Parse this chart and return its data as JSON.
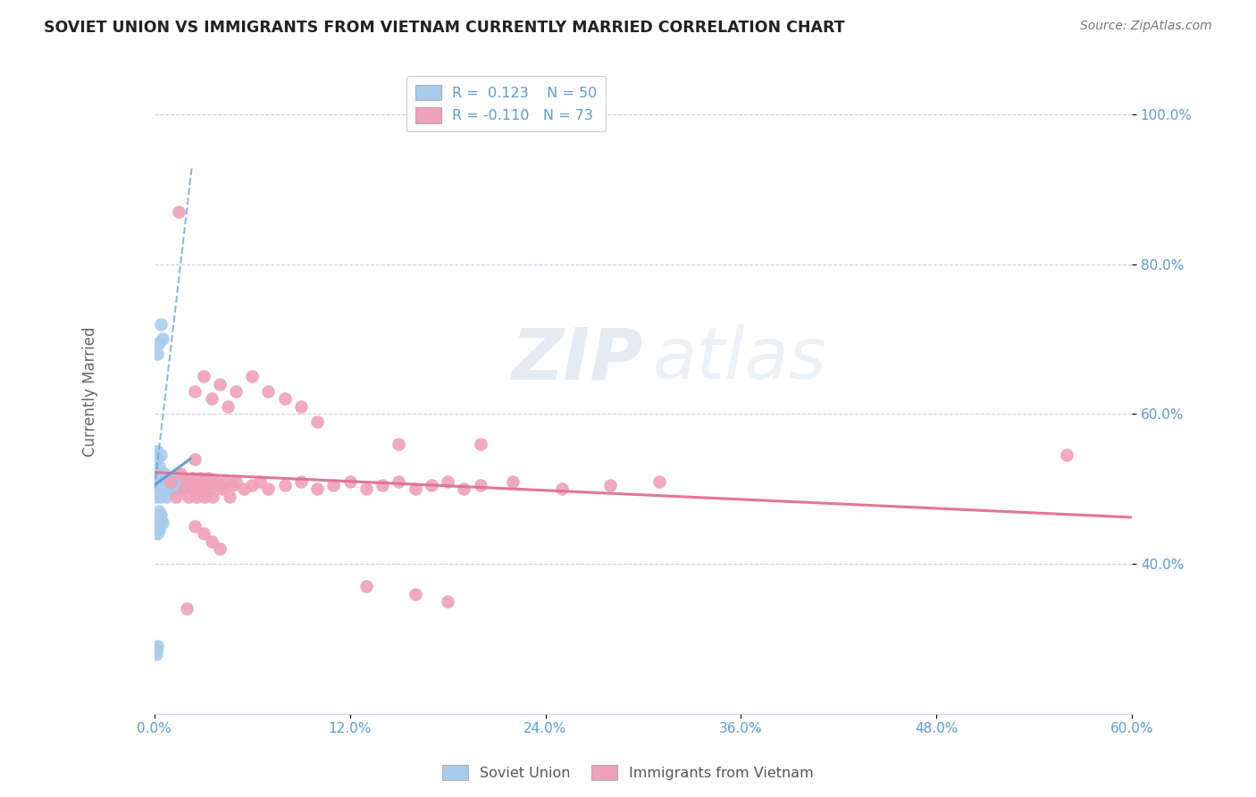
{
  "title": "SOVIET UNION VS IMMIGRANTS FROM VIETNAM CURRENTLY MARRIED CORRELATION CHART",
  "source": "Source: ZipAtlas.com",
  "ylabel": "Currently Married",
  "xlim": [
    0.0,
    0.6
  ],
  "ylim": [
    0.2,
    1.06
  ],
  "yticks": [
    0.4,
    0.6,
    0.8,
    1.0
  ],
  "ytick_labels": [
    "40.0%",
    "60.0%",
    "80.0%",
    "100.0%"
  ],
  "xtick_vals": [
    0.0,
    0.12,
    0.24,
    0.36,
    0.48,
    0.6
  ],
  "xtick_labels": [
    "0.0%",
    "12.0%",
    "24.0%",
    "36.0%",
    "48.0%",
    "60.0%"
  ],
  "color_blue": "#a8ccec",
  "color_pink": "#f0a0b8",
  "color_blue_line": "#5b9bd5",
  "color_pink_line": "#e07090",
  "color_axis": "#5b9bd5",
  "watermark_color": "#d0dce8",
  "grid_color": "#c8d4e0",
  "background_color": "#ffffff",
  "blue_dash_line_x": [
    0.0,
    0.023
  ],
  "blue_dash_line_y": [
    0.5,
    0.93
  ],
  "blue_solid_line_x": [
    0.0,
    0.022
  ],
  "blue_solid_line_y": [
    0.505,
    0.54
  ],
  "pink_line_x": [
    0.0,
    0.6
  ],
  "pink_line_y": [
    0.522,
    0.462
  ],
  "soviet_x": [
    0.001,
    0.001,
    0.001,
    0.002,
    0.002,
    0.002,
    0.002,
    0.003,
    0.003,
    0.003,
    0.003,
    0.004,
    0.004,
    0.004,
    0.004,
    0.005,
    0.005,
    0.005,
    0.006,
    0.006,
    0.006,
    0.007,
    0.007,
    0.007,
    0.008,
    0.008,
    0.009,
    0.009,
    0.01,
    0.01,
    0.011,
    0.011,
    0.012,
    0.013,
    0.014,
    0.015,
    0.016,
    0.017,
    0.018,
    0.019,
    0.001,
    0.002,
    0.003,
    0.004,
    0.005,
    0.003,
    0.004,
    0.002,
    0.001,
    0.001
  ],
  "soviet_y": [
    0.54,
    0.51,
    0.49,
    0.55,
    0.52,
    0.5,
    0.68,
    0.53,
    0.505,
    0.695,
    0.47,
    0.545,
    0.515,
    0.49,
    0.72,
    0.51,
    0.5,
    0.7,
    0.52,
    0.51,
    0.5,
    0.515,
    0.505,
    0.49,
    0.51,
    0.5,
    0.515,
    0.5,
    0.51,
    0.505,
    0.51,
    0.5,
    0.505,
    0.51,
    0.5,
    0.505,
    0.51,
    0.5,
    0.505,
    0.51,
    0.46,
    0.44,
    0.45,
    0.465,
    0.455,
    0.445,
    0.46,
    0.29,
    0.285,
    0.28
  ],
  "vietnam_x": [
    0.01,
    0.013,
    0.016,
    0.018,
    0.02,
    0.021,
    0.022,
    0.023,
    0.024,
    0.025,
    0.026,
    0.027,
    0.028,
    0.029,
    0.03,
    0.031,
    0.032,
    0.033,
    0.034,
    0.035,
    0.036,
    0.038,
    0.04,
    0.042,
    0.044,
    0.046,
    0.048,
    0.05,
    0.055,
    0.06,
    0.065,
    0.07,
    0.08,
    0.09,
    0.1,
    0.11,
    0.12,
    0.13,
    0.14,
    0.15,
    0.16,
    0.17,
    0.18,
    0.19,
    0.2,
    0.22,
    0.25,
    0.28,
    0.31,
    0.56,
    0.025,
    0.03,
    0.035,
    0.04,
    0.045,
    0.05,
    0.06,
    0.07,
    0.08,
    0.09,
    0.1,
    0.15,
    0.2,
    0.025,
    0.03,
    0.035,
    0.04,
    0.18,
    0.13,
    0.16,
    0.015,
    0.02,
    0.025
  ],
  "vietnam_y": [
    0.51,
    0.49,
    0.52,
    0.5,
    0.51,
    0.49,
    0.505,
    0.515,
    0.5,
    0.51,
    0.49,
    0.505,
    0.515,
    0.5,
    0.51,
    0.49,
    0.505,
    0.515,
    0.5,
    0.51,
    0.49,
    0.51,
    0.505,
    0.5,
    0.51,
    0.49,
    0.505,
    0.51,
    0.5,
    0.505,
    0.51,
    0.5,
    0.505,
    0.51,
    0.5,
    0.505,
    0.51,
    0.5,
    0.505,
    0.51,
    0.5,
    0.505,
    0.51,
    0.5,
    0.505,
    0.51,
    0.5,
    0.505,
    0.51,
    0.545,
    0.63,
    0.65,
    0.62,
    0.64,
    0.61,
    0.63,
    0.65,
    0.63,
    0.62,
    0.61,
    0.59,
    0.56,
    0.56,
    0.45,
    0.44,
    0.43,
    0.42,
    0.35,
    0.37,
    0.36,
    0.87,
    0.34,
    0.54
  ]
}
